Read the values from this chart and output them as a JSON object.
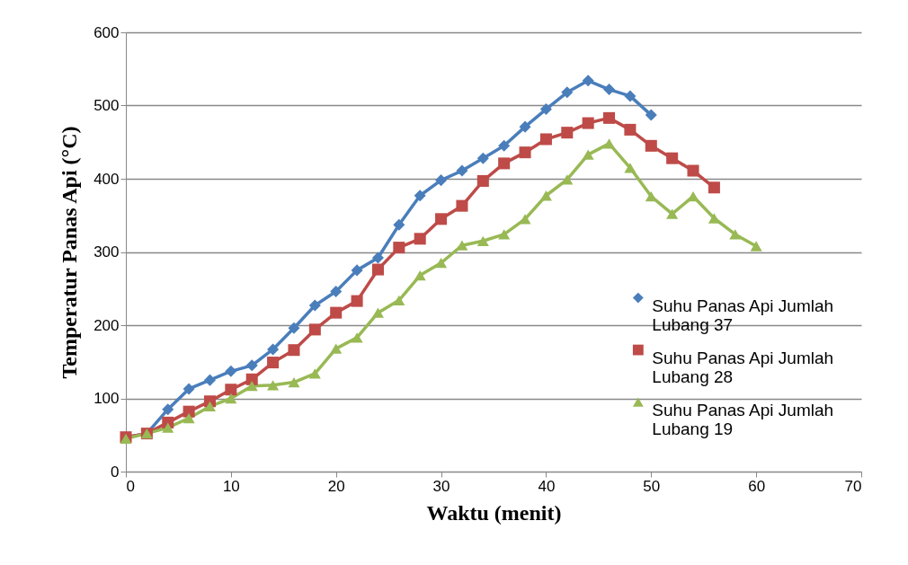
{
  "chart_data": {
    "type": "line",
    "xlabel": "Waktu (menit)",
    "ylabel": "Temperatur Panas Api (°C)",
    "x": [
      0,
      2,
      4,
      6,
      8,
      10,
      12,
      14,
      16,
      18,
      20,
      22,
      24,
      26,
      28,
      30,
      32,
      34,
      36,
      38,
      40,
      42,
      44,
      46,
      48,
      50,
      52,
      54,
      56,
      58,
      60
    ],
    "series": [
      {
        "name": "Suhu Panas Api Jumlah Lubang 37",
        "color": "#4a7ebb",
        "marker": "diamond",
        "values": [
          47,
          52,
          85,
          113,
          125,
          137,
          145,
          167,
          196,
          227,
          246,
          275,
          292,
          337,
          377,
          398,
          411,
          428,
          445,
          471,
          495,
          518,
          534,
          522,
          513,
          487,
          null,
          null,
          null,
          null,
          null
        ]
      },
      {
        "name": "Suhu Panas Api Jumlah Lubang 28",
        "color": "#be4b48",
        "marker": "square",
        "values": [
          47,
          52,
          67,
          82,
          96,
          112,
          126,
          149,
          166,
          194,
          217,
          233,
          276,
          306,
          318,
          345,
          363,
          397,
          421,
          436,
          454,
          463,
          476,
          483,
          467,
          445,
          428,
          411,
          388,
          null,
          null
        ]
      },
      {
        "name": "Suhu Panas Api Jumlah Lubang 19",
        "color": "#98b954",
        "marker": "triangle",
        "values": [
          45,
          52,
          60,
          73,
          89,
          100,
          117,
          118,
          122,
          134,
          168,
          183,
          217,
          234,
          268,
          285,
          309,
          315,
          324,
          345,
          377,
          399,
          433,
          448,
          415,
          376,
          352,
          376,
          346,
          324,
          308
        ]
      }
    ],
    "xlim": [
      0,
      70
    ],
    "xticks": [
      0,
      10,
      20,
      30,
      40,
      50,
      60,
      70
    ],
    "ylim": [
      0,
      600
    ],
    "yticks": [
      0,
      100,
      200,
      300,
      400,
      500,
      600
    ],
    "grid": "y",
    "legend": "right",
    "line_style": "solid"
  }
}
